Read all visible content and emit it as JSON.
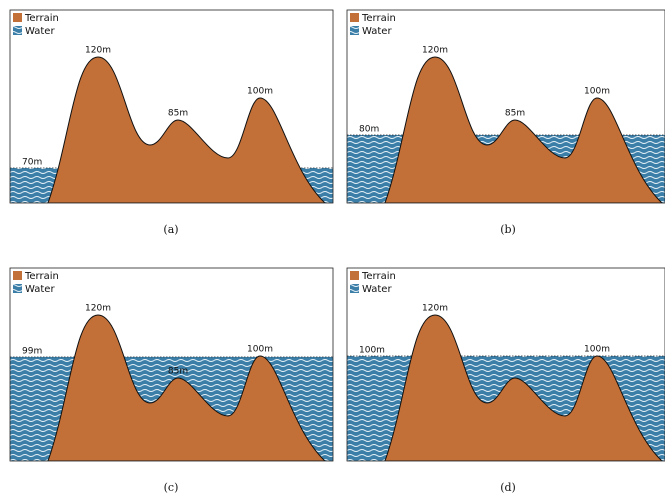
{
  "panels": [
    {
      "legend": [
        "Terrain",
        "Water"
      ],
      "peaks": [
        "120m",
        "85m",
        "100m"
      ],
      "water": {
        "value": 70,
        "label": "70m"
      },
      "caption": "(a)"
    },
    {
      "legend": [
        "Terrain",
        "Water"
      ],
      "peaks": [
        "120m",
        "85m",
        "100m"
      ],
      "water": {
        "value": 80,
        "label": "80m"
      },
      "caption": "(b)"
    },
    {
      "legend": [
        "Terrain",
        "Water"
      ],
      "peaks": [
        "120m",
        "85m",
        "100m"
      ],
      "water": {
        "value": 99,
        "label": "99m"
      },
      "caption": "(c)"
    },
    {
      "legend": [
        "Terrain",
        "Water"
      ],
      "peaks": [
        "120m",
        null,
        "100m"
      ],
      "water": {
        "value": 100,
        "label": "100m"
      },
      "caption": "(d)"
    }
  ]
}
